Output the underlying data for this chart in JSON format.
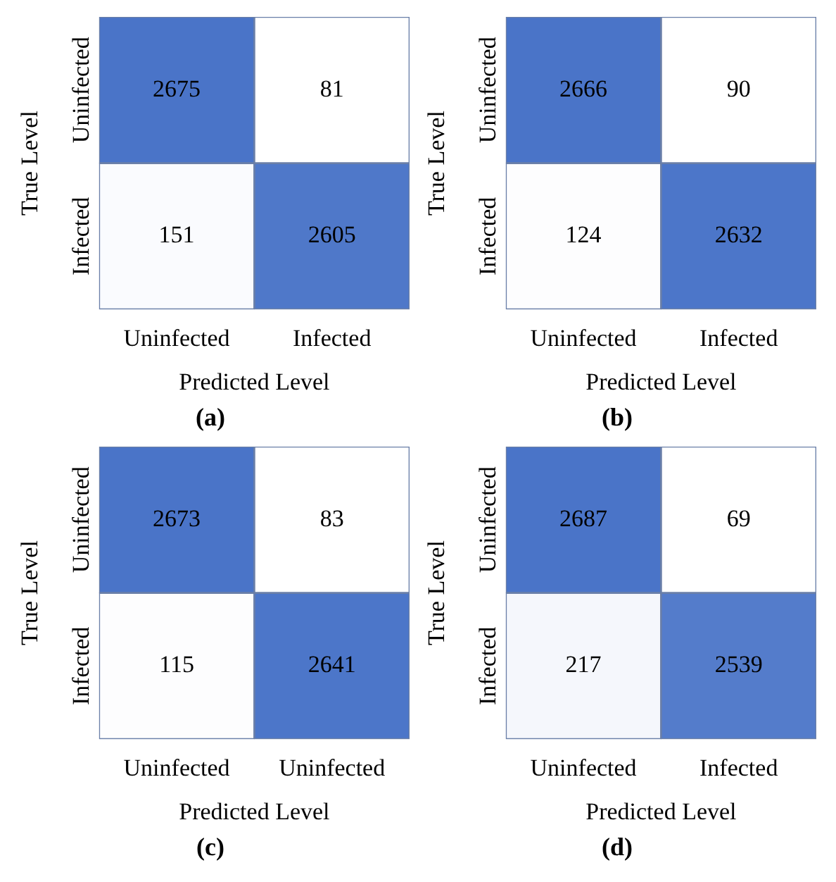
{
  "chart_data": [
    {
      "type": "heatmap",
      "title": "(a)",
      "xlabel": "Predicted Level",
      "ylabel": "True Level",
      "categories": [
        "Uninfected",
        "Infected"
      ],
      "y_categories": [
        "Uninfected",
        "Infected"
      ],
      "cells": [
        [
          2675,
          81
        ],
        [
          151,
          2605
        ]
      ],
      "color": "#4a74c8",
      "data_labels": true
    },
    {
      "type": "heatmap",
      "title": "(b)",
      "xlabel": "Predicted Level",
      "ylabel": "True Level",
      "categories": [
        "Uninfected",
        "Infected"
      ],
      "y_categories": [
        "Uninfected",
        "Infected"
      ],
      "cells": [
        [
          2666,
          90
        ],
        [
          124,
          2632
        ]
      ],
      "color": "#4a74c8",
      "data_labels": true
    },
    {
      "type": "heatmap",
      "title": "(c)",
      "xlabel": "Predicted Level",
      "ylabel": "True Level",
      "categories": [
        "Uninfected",
        "Uninfected"
      ],
      "y_categories": [
        "Uninfected",
        "Infected"
      ],
      "cells": [
        [
          2673,
          83
        ],
        [
          115,
          2641
        ]
      ],
      "color": "#4a74c8",
      "data_labels": true
    },
    {
      "type": "heatmap",
      "title": "(d)",
      "xlabel": "Predicted Level",
      "ylabel": "True Level",
      "categories": [
        "Uninfected",
        "Infected"
      ],
      "y_categories": [
        "Uninfected",
        "Infected"
      ],
      "cells": [
        [
          2687,
          69
        ],
        [
          217,
          2539
        ]
      ],
      "color": "#4a74c8",
      "data_labels": true
    }
  ]
}
